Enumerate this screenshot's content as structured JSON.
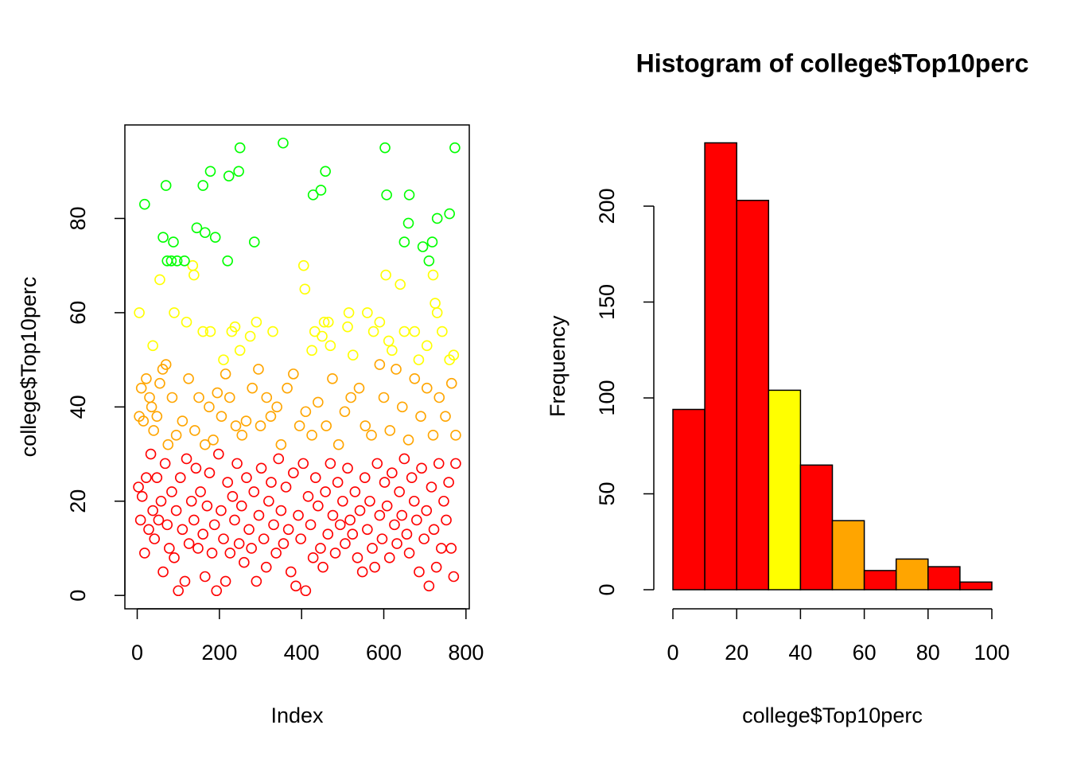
{
  "chart_data": [
    {
      "type": "scatter",
      "xlabel": "Index",
      "ylabel": "college$Top10perc",
      "xlim": [
        -30.04,
        808.04
      ],
      "ylim": [
        -2.84,
        99.84
      ],
      "xticks": [
        0,
        200,
        400,
        600,
        800
      ],
      "yticks": [
        0,
        20,
        40,
        60,
        80
      ],
      "series": [
        {
          "color": "#ff0000",
          "x": [
            3,
            8,
            12,
            18,
            22,
            28,
            33,
            38,
            42,
            48,
            52,
            58,
            63,
            68,
            73,
            78,
            84,
            90,
            95,
            100,
            105,
            110,
            116,
            120,
            126,
            132,
            138,
            143,
            148,
            154,
            160,
            165,
            170,
            176,
            182,
            188,
            193,
            198,
            204,
            210,
            215,
            220,
            226,
            232,
            237,
            243,
            248,
            254,
            260,
            266,
            272,
            278,
            284,
            290,
            296,
            302,
            308,
            314,
            320,
            326,
            332,
            338,
            344,
            350,
            356,
            362,
            368,
            374,
            380,
            386,
            392,
            398,
            404,
            410,
            416,
            422,
            428,
            434,
            440,
            446,
            452,
            458,
            464,
            470,
            476,
            482,
            488,
            494,
            500,
            506,
            512,
            518,
            524,
            530,
            536,
            542,
            548,
            554,
            560,
            566,
            572,
            578,
            584,
            590,
            596,
            602,
            608,
            614,
            620,
            626,
            632,
            638,
            644,
            650,
            656,
            662,
            668,
            674,
            680,
            686,
            692,
            698,
            704,
            710,
            716,
            722,
            728,
            734,
            740,
            746,
            752,
            758,
            764,
            770,
            775
          ],
          "values": [
            23,
            16,
            21,
            9,
            25,
            14,
            30,
            18,
            12,
            25,
            16,
            20,
            5,
            28,
            15,
            10,
            22,
            8,
            18,
            1,
            25,
            14,
            3,
            29,
            11,
            20,
            16,
            27,
            10,
            22,
            13,
            4,
            19,
            26,
            9,
            15,
            1,
            30,
            18,
            12,
            3,
            24,
            9,
            21,
            16,
            28,
            11,
            19,
            7,
            25,
            14,
            10,
            22,
            3,
            17,
            27,
            12,
            6,
            20,
            24,
            15,
            9,
            29,
            18,
            11,
            23,
            14,
            5,
            26,
            2,
            17,
            12,
            28,
            1,
            21,
            15,
            8,
            25,
            19,
            10,
            6,
            22,
            13,
            28,
            17,
            9,
            24,
            15,
            20,
            11,
            27,
            16,
            13,
            22,
            8,
            18,
            5,
            25,
            14,
            20,
            10,
            6,
            28,
            17,
            12,
            24,
            19,
            8,
            26,
            15,
            11,
            22,
            17,
            29,
            13,
            9,
            25,
            20,
            16,
            5,
            27,
            12,
            18,
            2,
            23,
            14,
            6,
            28,
            10,
            20,
            16,
            24,
            10,
            4,
            28
          ]
        },
        {
          "color": "#ffa500",
          "x": [
            5,
            10,
            15,
            22,
            30,
            35,
            40,
            48,
            55,
            62,
            70,
            75,
            85,
            95,
            110,
            125,
            140,
            150,
            165,
            175,
            185,
            195,
            205,
            215,
            225,
            240,
            255,
            265,
            280,
            295,
            300,
            315,
            325,
            340,
            350,
            365,
            380,
            395,
            410,
            425,
            440,
            460,
            475,
            490,
            505,
            520,
            540,
            555,
            570,
            590,
            600,
            615,
            630,
            645,
            660,
            675,
            690,
            705,
            720,
            735,
            750,
            765,
            775
          ],
          "values": [
            38,
            44,
            37,
            46,
            42,
            40,
            35,
            38,
            45,
            48,
            49,
            32,
            42,
            34,
            37,
            46,
            35,
            42,
            32,
            40,
            33,
            43,
            38,
            47,
            42,
            36,
            34,
            37,
            44,
            48,
            36,
            42,
            38,
            40,
            32,
            44,
            47,
            36,
            39,
            34,
            41,
            36,
            46,
            32,
            39,
            42,
            44,
            36,
            34,
            49,
            42,
            35,
            48,
            40,
            33,
            46,
            38,
            44,
            34,
            42,
            38,
            45,
            34
          ]
        },
        {
          "color": "#ffff00",
          "x": [
            5,
            38,
            55,
            90,
            120,
            135,
            138,
            160,
            178,
            210,
            230,
            238,
            250,
            275,
            290,
            330,
            405,
            408,
            425,
            432,
            450,
            455,
            465,
            470,
            512,
            515,
            525,
            560,
            575,
            590,
            605,
            612,
            620,
            640,
            650,
            675,
            685,
            705,
            720,
            725,
            730,
            742,
            760,
            770
          ],
          "values": [
            60,
            53,
            67,
            60,
            58,
            70,
            68,
            56,
            56,
            50,
            56,
            57,
            52,
            55,
            58,
            56,
            70,
            65,
            52,
            56,
            55,
            58,
            58,
            53,
            57,
            60,
            51,
            60,
            56,
            58,
            68,
            54,
            52,
            66,
            56,
            56,
            50,
            53,
            68,
            62,
            60,
            56,
            50,
            51
          ]
        },
        {
          "color": "#00ff00",
          "x": [
            18,
            63,
            70,
            73,
            83,
            88,
            97,
            115,
            145,
            160,
            165,
            178,
            190,
            220,
            223,
            247,
            250,
            285,
            355,
            428,
            447,
            458,
            603,
            607,
            650,
            660,
            662,
            695,
            710,
            718,
            730,
            760,
            773
          ],
          "values": [
            83,
            76,
            87,
            71,
            71,
            75,
            71,
            71,
            78,
            87,
            77,
            90,
            76,
            71,
            89,
            90,
            95,
            75,
            96,
            85,
            86,
            90,
            95,
            85,
            75,
            79,
            85,
            74,
            71,
            75,
            80,
            81,
            95
          ]
        }
      ]
    },
    {
      "type": "histogram",
      "title": "Histogram of college$Top10perc",
      "xlabel": "college$Top10perc",
      "ylabel": "Frequency",
      "bins": [
        0,
        10,
        20,
        30,
        40,
        50,
        60,
        70,
        80,
        90,
        100
      ],
      "values": [
        94,
        233,
        203,
        104,
        65,
        36,
        10,
        16,
        12,
        4
      ],
      "colors": [
        "#ff0000",
        "#ff0000",
        "#ff0000",
        "#ffff00",
        "#ff0000",
        "#ffa500",
        "#ff0000",
        "#ffa500",
        "#ff0000",
        "#ff0000"
      ],
      "xlim": [
        0,
        100
      ],
      "ylim": [
        0,
        233
      ],
      "xticks": [
        0,
        20,
        40,
        60,
        80,
        100
      ],
      "yticks": [
        0,
        50,
        100,
        150,
        200
      ]
    }
  ]
}
